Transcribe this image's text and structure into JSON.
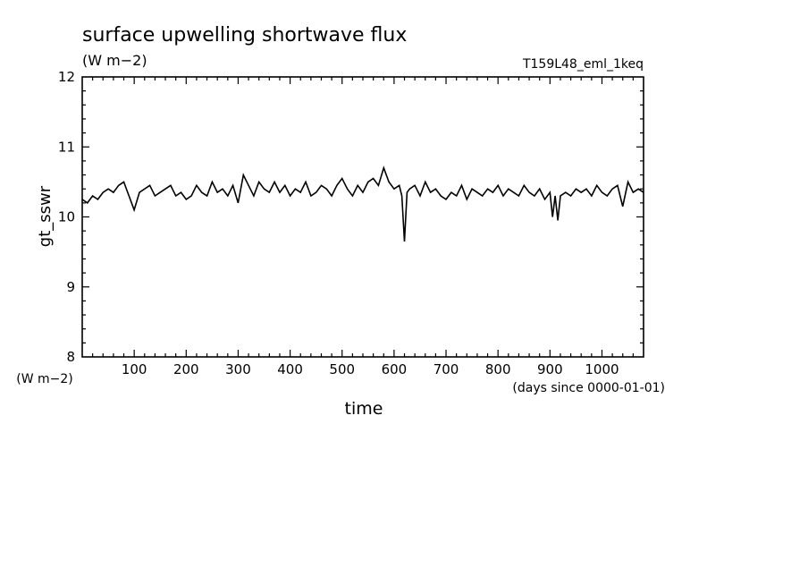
{
  "chart_data": {
    "type": "line",
    "title": "surface upwelling shortwave flux",
    "subtitle": "(W m−2)",
    "run_label": "T159L48_eml_1keq",
    "ylabel": "gt_sswr",
    "yunits": "(W m−2)",
    "xlabel": "time",
    "xunits": "(days since 0000-01-01)",
    "xlim": [
      0,
      1080
    ],
    "ylim": [
      8,
      12
    ],
    "xticks": [
      100,
      200,
      300,
      400,
      500,
      600,
      700,
      800,
      900,
      1000
    ],
    "yticks": [
      8,
      9,
      10,
      11,
      12
    ],
    "grid": false,
    "line_color": "#000000",
    "series": [
      {
        "x": [
          0,
          10,
          20,
          30,
          40,
          50,
          60,
          70,
          80,
          90,
          100,
          110,
          120,
          130,
          140,
          150,
          160,
          170,
          180,
          190,
          200,
          210,
          220,
          230,
          240,
          250,
          260,
          270,
          280,
          290,
          300,
          310,
          320,
          330,
          340,
          350,
          360,
          370,
          380,
          390,
          400,
          410,
          420,
          430,
          440,
          450,
          460,
          470,
          480,
          490,
          500,
          510,
          520,
          530,
          540,
          550,
          560,
          570,
          580,
          590,
          600,
          610,
          615,
          620,
          625,
          630,
          640,
          650,
          660,
          670,
          680,
          690,
          700,
          710,
          720,
          730,
          740,
          750,
          760,
          770,
          780,
          790,
          800,
          810,
          820,
          830,
          840,
          850,
          860,
          870,
          880,
          890,
          900,
          905,
          910,
          915,
          920,
          930,
          940,
          950,
          960,
          970,
          980,
          990,
          1000,
          1010,
          1020,
          1030,
          1040,
          1050,
          1060,
          1070,
          1080
        ],
        "values": [
          10.25,
          10.2,
          10.3,
          10.25,
          10.35,
          10.4,
          10.35,
          10.45,
          10.5,
          10.3,
          10.1,
          10.35,
          10.4,
          10.45,
          10.3,
          10.35,
          10.4,
          10.45,
          10.3,
          10.35,
          10.25,
          10.3,
          10.45,
          10.35,
          10.3,
          10.5,
          10.35,
          10.4,
          10.3,
          10.45,
          10.2,
          10.6,
          10.45,
          10.3,
          10.5,
          10.4,
          10.35,
          10.5,
          10.35,
          10.45,
          10.3,
          10.4,
          10.35,
          10.5,
          10.3,
          10.35,
          10.45,
          10.4,
          10.3,
          10.45,
          10.55,
          10.4,
          10.3,
          10.45,
          10.35,
          10.5,
          10.55,
          10.45,
          10.7,
          10.5,
          10.4,
          10.45,
          10.3,
          9.65,
          10.35,
          10.4,
          10.45,
          10.3,
          10.5,
          10.35,
          10.4,
          10.3,
          10.25,
          10.35,
          10.3,
          10.45,
          10.25,
          10.4,
          10.35,
          10.3,
          10.4,
          10.35,
          10.45,
          10.3,
          10.4,
          10.35,
          10.3,
          10.45,
          10.35,
          10.3,
          10.4,
          10.25,
          10.35,
          10.0,
          10.3,
          9.95,
          10.3,
          10.35,
          10.3,
          10.4,
          10.35,
          10.4,
          10.3,
          10.45,
          10.35,
          10.3,
          10.4,
          10.45,
          10.15,
          10.5,
          10.35,
          10.4,
          10.35
        ]
      }
    ]
  }
}
